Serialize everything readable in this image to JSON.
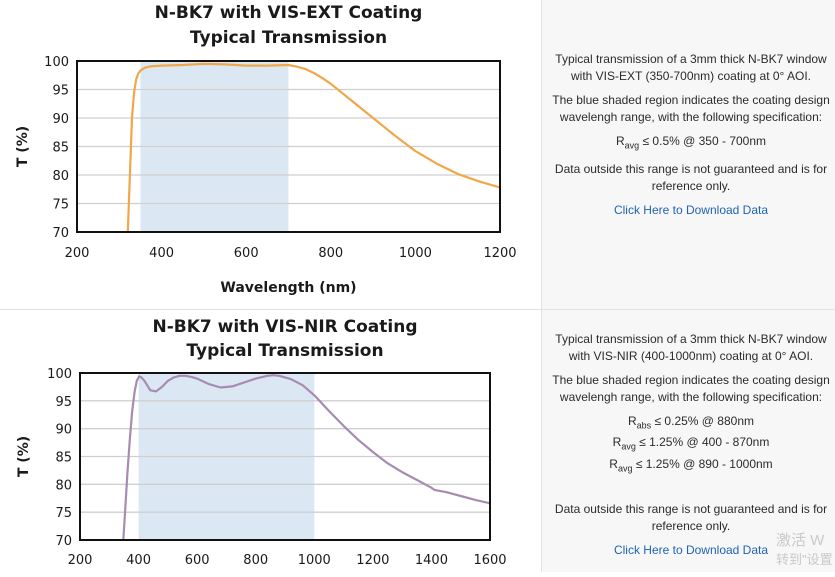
{
  "chart_data": [
    {
      "type": "line",
      "title": "N-BK7 with VIS-EXT Coating",
      "subtitle": "Typical Transmission",
      "xlabel": "Wavelength (nm)",
      "ylabel": "T (%)",
      "xlim": [
        200,
        1200
      ],
      "ylim": [
        70,
        100
      ],
      "xticks": [
        "200",
        "400",
        "600",
        "800",
        "1000",
        "1200"
      ],
      "yticks": [
        "70",
        "75",
        "80",
        "85",
        "90",
        "95",
        "100"
      ],
      "grid": "horizontal",
      "shaded_region": [
        350,
        700
      ],
      "series": [
        {
          "color": "#f0a74a",
          "x": [
            320,
            325,
            330,
            335,
            340,
            345,
            350,
            360,
            370,
            380,
            400,
            450,
            500,
            550,
            600,
            650,
            700,
            720,
            740,
            760,
            780,
            800,
            850,
            900,
            950,
            1000,
            1050,
            1100,
            1150,
            1200
          ],
          "y": [
            70,
            80,
            90,
            94.5,
            96.8,
            97.8,
            98.3,
            98.8,
            99.0,
            99.1,
            99.2,
            99.3,
            99.5,
            99.4,
            99.2,
            99.2,
            99.3,
            99.0,
            98.6,
            97.9,
            97.0,
            96.0,
            93.0,
            90.0,
            87.0,
            84.2,
            82.0,
            80.2,
            78.9,
            77.8
          ]
        }
      ]
    },
    {
      "type": "line",
      "title": "N-BK7 with VIS-NIR Coating",
      "subtitle": "Typical Transmission",
      "xlabel": "",
      "ylabel": "T (%)",
      "xlim": [
        200,
        1600
      ],
      "ylim": [
        70,
        100
      ],
      "xticks": [
        "200",
        "400",
        "600",
        "800",
        "1000",
        "1200",
        "1400",
        "1600"
      ],
      "yticks": [
        "70",
        "75",
        "80",
        "85",
        "90",
        "95",
        "100"
      ],
      "grid": "horizontal",
      "shaded_region": [
        400,
        1000
      ],
      "series": [
        {
          "color": "#a78bb0",
          "x": [
            348,
            355,
            362,
            370,
            378,
            386,
            394,
            402,
            410,
            420,
            440,
            460,
            480,
            500,
            520,
            540,
            560,
            580,
            600,
            640,
            680,
            720,
            760,
            800,
            840,
            860,
            880,
            920,
            960,
            1000,
            1050,
            1100,
            1150,
            1200,
            1250,
            1300,
            1350,
            1400,
            1410,
            1450,
            1500,
            1550,
            1600
          ],
          "y": [
            70,
            76,
            82,
            88,
            93,
            96.5,
            98.6,
            99.4,
            99.2,
            98.6,
            96.9,
            96.7,
            97.5,
            98.6,
            99.2,
            99.5,
            99.5,
            99.3,
            99.0,
            98.0,
            97.4,
            97.6,
            98.3,
            99.0,
            99.5,
            99.6,
            99.5,
            98.9,
            97.8,
            96.0,
            93.2,
            90.5,
            88.0,
            85.8,
            83.8,
            82.2,
            80.8,
            79.4,
            79.0,
            78.6,
            77.9,
            77.2,
            76.6
          ]
        }
      ]
    }
  ],
  "info_panels": [
    {
      "description": "Typical transmission of a 3mm thick N-BK7 window with VIS-EXT (350-700nm) coating at 0° AOI.",
      "shaded_note": "The blue shaded region indicates the coating design wavelengh range, with the following specification:",
      "specs": [
        {
          "symbol": "R",
          "sub": "avg",
          "text": "≤ 0.5% @ 350 - 700nm"
        }
      ],
      "disclaimer": "Data outside this range is not guaranteed and is for reference only.",
      "link": "Click Here to Download Data"
    },
    {
      "description": "Typical transmission of a 3mm thick N-BK7 window with VIS-NIR (400-1000nm) coating at 0° AOI.",
      "shaded_note": "The blue shaded region indicates the coating design wavelengh range, with the following specification:",
      "specs": [
        {
          "symbol": "R",
          "sub": "abs",
          "text": "≤ 0.25% @ 880nm"
        },
        {
          "symbol": "R",
          "sub": "avg",
          "text": "≤ 1.25% @ 400 - 870nm"
        },
        {
          "symbol": "R",
          "sub": "avg",
          "text": "≤ 1.25% @ 890 - 1000nm"
        }
      ],
      "disclaimer": "Data outside this range is not guaranteed and is for reference only.",
      "link": "Click Here to Download Data"
    }
  ],
  "watermark": {
    "line1": "激活 W",
    "line2": "转到\"设置"
  },
  "colors": {
    "shade": "#dbe8f4",
    "grid": "#cfcfcf",
    "link": "#1f63b5"
  }
}
